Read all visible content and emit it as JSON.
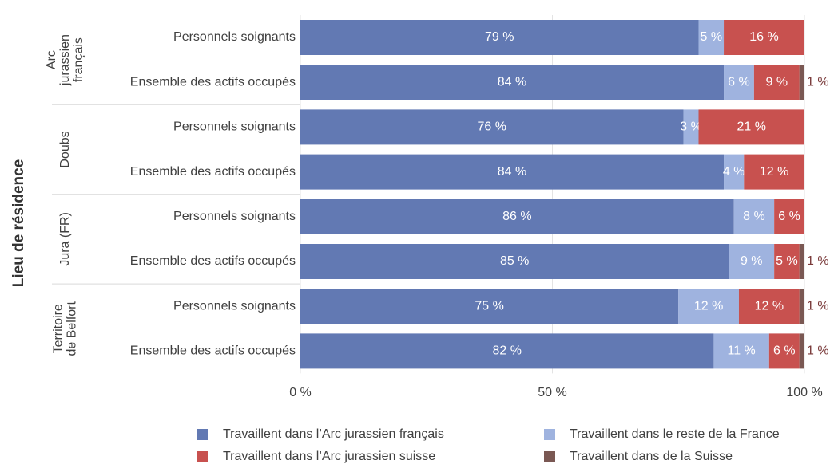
{
  "chart_data": {
    "type": "stacked_barh",
    "y_axis_label": "Lieu de résidence",
    "groups": [
      [
        "Arc",
        "jurassien",
        "français"
      ],
      [
        "Doubs"
      ],
      [
        "Jura (FR)"
      ],
      [
        "Territoire",
        "de Belfort"
      ]
    ],
    "categories": [
      "Personnels soignants",
      "Ensemble des actifs occupés",
      "Personnels soignants",
      "Ensemble des actifs occupés",
      "Personnels soignants",
      "Ensemble des actifs occupés",
      "Personnels soignants",
      "Ensemble des actifs occupés"
    ],
    "series": [
      {
        "name": "Travaillent dans l’Arc jurassien français",
        "color": "#6279b3",
        "values": [
          79,
          84,
          76,
          84,
          86,
          85,
          75,
          82
        ],
        "value_labels": [
          "79 %",
          "84 %",
          "76 %",
          "84 %",
          "86 %",
          "85 %",
          "75 %",
          "82 %"
        ]
      },
      {
        "name": "Travaillent dans le reste de la France",
        "color": "#9fb3df",
        "values": [
          5,
          6,
          3,
          4,
          8,
          9,
          12,
          11
        ],
        "value_labels": [
          "5 %",
          "6 %",
          "3 %",
          "4 %",
          "8 %",
          "9 %",
          "12 %",
          "11 %"
        ]
      },
      {
        "name": "Travaillent dans l’Arc jurassien suisse",
        "color": "#c8514f",
        "values": [
          16,
          9,
          21,
          12,
          6,
          5,
          12,
          6
        ],
        "value_labels": [
          "16 %",
          "9 %",
          "21 %",
          "12 %",
          "6 %",
          "5 %",
          "12 %",
          "6 %"
        ]
      },
      {
        "name": "Travaillent dans de la Suisse",
        "color": "#7a5853",
        "values": [
          0,
          1,
          0,
          0,
          0,
          1,
          1,
          1
        ],
        "value_labels": [
          null,
          "1 %",
          null,
          null,
          null,
          "1 %",
          "1 %",
          "1 %"
        ]
      }
    ],
    "xlim": [
      0,
      100
    ],
    "xticks": [
      {
        "value": 0,
        "label": "0 %"
      },
      {
        "value": 50,
        "label": "50 %"
      },
      {
        "value": 100,
        "label": "100 %"
      }
    ],
    "grid": true,
    "legend": "bottom"
  }
}
